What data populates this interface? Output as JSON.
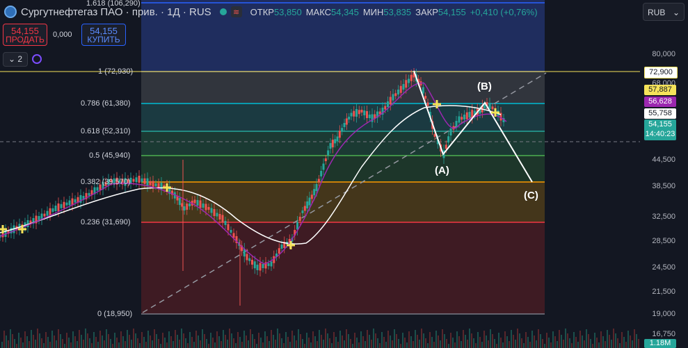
{
  "header": {
    "title": "Сургутнефтегаз ПАО · прив. · 1Д · RUS",
    "ohlc": [
      {
        "key": "ОТКР",
        "value": "53,850"
      },
      {
        "key": "МАКС",
        "value": "54,345"
      },
      {
        "key": "МИН",
        "value": "53,835"
      },
      {
        "key": "ЗАКР",
        "value": "54,155"
      }
    ],
    "change": "+0,410 (+0,76%)"
  },
  "trade": {
    "sell_price": "54,155",
    "sell_label": "ПРОДАТЬ",
    "spread": "0,000",
    "buy_price": "54,155",
    "buy_label": "КУПИТЬ"
  },
  "indicators_count": "2",
  "currency": "RUB",
  "fib_levels": [
    {
      "label": "1.618 (106,290)",
      "color": "#2962ff"
    },
    {
      "label": "1 (72,930)",
      "color": "#787b86"
    },
    {
      "label": "0.786 (61,380)",
      "color": "#00bcd4"
    },
    {
      "label": "0.618 (52,310)",
      "color": "#26a69a"
    },
    {
      "label": "0.5 (45,940)",
      "color": "#4caf50"
    },
    {
      "label": "0.382 (39,570)",
      "color": "#ff9800"
    },
    {
      "label": "0.236 (31,690)",
      "color": "#f23645"
    },
    {
      "label": "0 (18,950)",
      "color": "#787b86"
    }
  ],
  "price_axis": [
    "80,000",
    "68,000",
    "44,500",
    "38,500",
    "32,500",
    "28,500",
    "24,500",
    "21,500",
    "19,000",
    "16,750"
  ],
  "price_tags": [
    {
      "value": "72,900",
      "bg": "#ffffff",
      "fg": "#131722",
      "border": "#f5e35a"
    },
    {
      "value": "57,887",
      "bg": "#f5e35a",
      "fg": "#131722",
      "border": "#f5e35a"
    },
    {
      "value": "56,628",
      "bg": "#9c27b0",
      "fg": "#ffffff",
      "border": "#9c27b0"
    },
    {
      "value": "55,758",
      "bg": "#ffffff",
      "fg": "#131722",
      "border": "#ffffff"
    },
    {
      "value": "54,155",
      "bg": "#26a69a",
      "fg": "#ffffff",
      "border": "#26a69a"
    },
    {
      "value": "14:40:23",
      "bg": "#26a69a",
      "fg": "#ffffff",
      "border": "#26a69a"
    }
  ],
  "volume_tag": "1.18M",
  "waves": {
    "a": "(A)",
    "b": "(B)",
    "c": "(C)"
  },
  "colors": {
    "up": "#26a69a",
    "down": "#ef5350",
    "ma_slow": "#ffffff",
    "ma_fast": "#9c27b0"
  }
}
